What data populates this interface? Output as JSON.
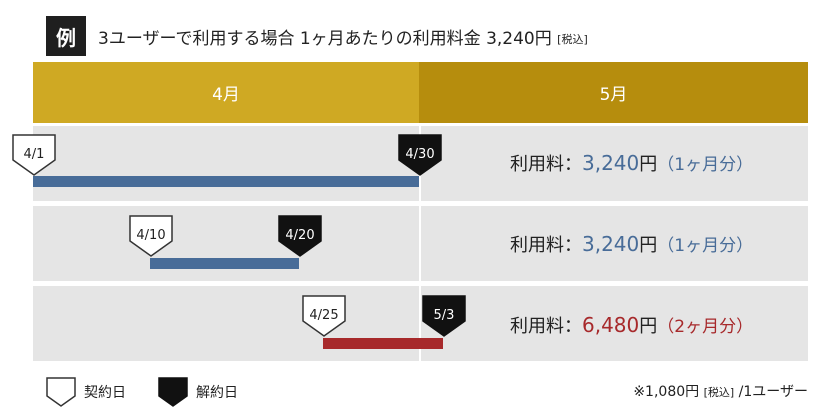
{
  "header": {
    "badge": "例",
    "title": "3ユーザーで利用する場合 1ヶ月あたりの利用料金 3,240円",
    "title_tax": "[税込]"
  },
  "months": {
    "april": "4月",
    "may": "5月"
  },
  "rows": [
    {
      "start": "4/1",
      "end": "4/30",
      "fee_label": "利用料：",
      "fee_value": "3,240",
      "fee_unit": "円",
      "fee_period": "（1ヶ月分）",
      "color": "#486c98"
    },
    {
      "start": "4/10",
      "end": "4/20",
      "fee_label": "利用料：",
      "fee_value": "3,240",
      "fee_unit": "円",
      "fee_period": "（1ヶ月分）",
      "color": "#486c98"
    },
    {
      "start": "4/25",
      "end": "5/3",
      "fee_label": "利用料：",
      "fee_value": "6,480",
      "fee_unit": "円",
      "fee_period": "（2ヶ月分）",
      "color": "#a7292b"
    }
  ],
  "legend": {
    "contract": "契約日",
    "cancel": "解約日"
  },
  "note": {
    "prefix": "※1,080円",
    "tax": "[税込]",
    "suffix": "/1ユーザー"
  },
  "colors": {
    "gold_light": "#cfa923",
    "gold_dark": "#b68d0d",
    "row_bg": "#e5e5e5",
    "blue": "#486c98",
    "red": "#a7292b"
  }
}
